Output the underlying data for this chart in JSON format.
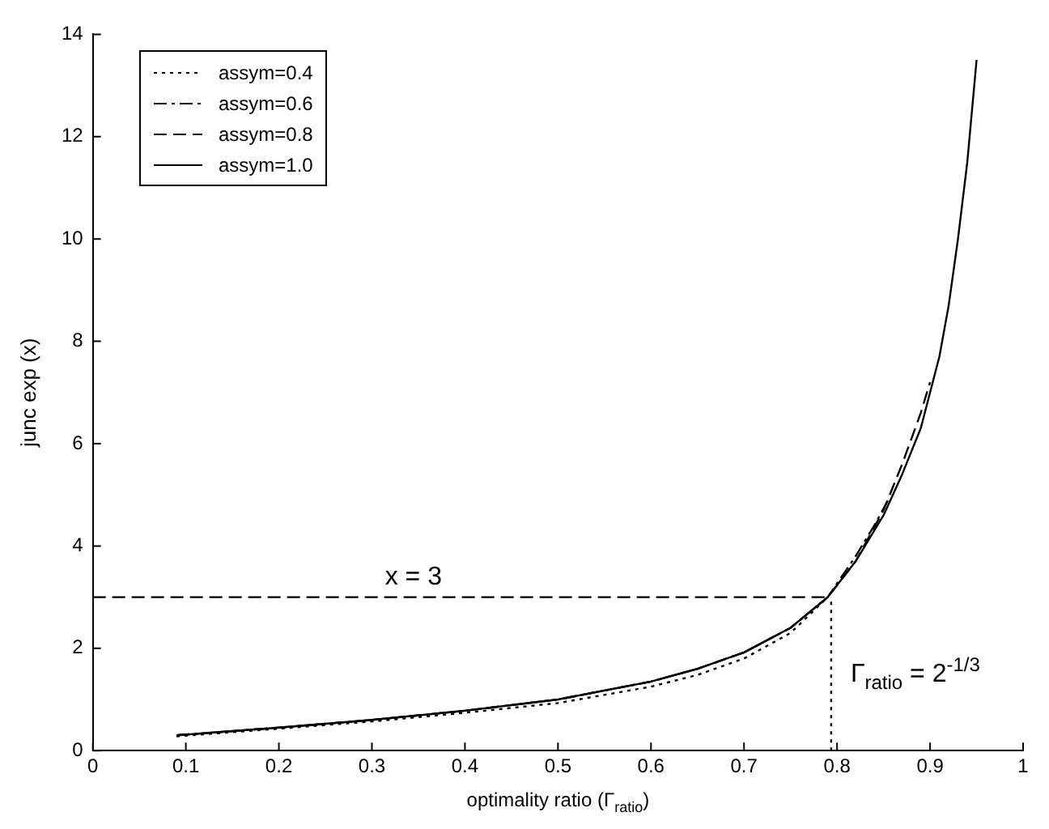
{
  "chart_data": {
    "type": "line",
    "xlabel": "optimality ratio (Γ$_{ratio}$)",
    "ylabel": "junc exp (x)",
    "xlim": [
      0,
      1
    ],
    "xticks": [
      0,
      0.1,
      0.2,
      0.3,
      0.4,
      0.5,
      0.6,
      0.7,
      0.8,
      0.9,
      1
    ],
    "ylim": [
      0,
      14
    ],
    "yticks": [
      0,
      2,
      4,
      6,
      8,
      10,
      12,
      14
    ],
    "grid": false,
    "legend": "top left",
    "marker": "none",
    "series": [
      {
        "name": "assym=0.4",
        "color": "#000000",
        "line_style": "dotted",
        "x": [
          0.09,
          0.2,
          0.3,
          0.4,
          0.5,
          0.6,
          0.65,
          0.7,
          0.75,
          0.79
        ],
        "values": [
          0.28,
          0.43,
          0.57,
          0.74,
          0.93,
          1.25,
          1.48,
          1.8,
          2.3,
          3.0
        ]
      },
      {
        "name": "assym=0.6",
        "color": "#000000",
        "line_style": "dashdot",
        "x": [
          0.09,
          0.2,
          0.3,
          0.4,
          0.5,
          0.6,
          0.65,
          0.7,
          0.75,
          0.79,
          0.82,
          0.84,
          0.855
        ],
        "values": [
          0.3,
          0.45,
          0.6,
          0.78,
          1.0,
          1.35,
          1.6,
          1.92,
          2.4,
          3.0,
          3.8,
          4.4,
          4.9
        ]
      },
      {
        "name": "assym=0.8",
        "color": "#000000",
        "line_style": "dashed",
        "x": [
          0.09,
          0.2,
          0.3,
          0.4,
          0.5,
          0.6,
          0.65,
          0.7,
          0.75,
          0.79,
          0.82,
          0.85,
          0.87,
          0.89,
          0.9
        ],
        "values": [
          0.3,
          0.45,
          0.6,
          0.78,
          1.0,
          1.35,
          1.6,
          1.92,
          2.4,
          3.0,
          3.7,
          4.7,
          5.6,
          6.6,
          7.2
        ]
      },
      {
        "name": "assym=1.0",
        "color": "#000000",
        "line_style": "solid",
        "x": [
          0.09,
          0.2,
          0.3,
          0.4,
          0.5,
          0.6,
          0.65,
          0.7,
          0.75,
          0.79,
          0.82,
          0.85,
          0.87,
          0.89,
          0.9,
          0.91,
          0.92,
          0.93,
          0.94,
          0.95
        ],
        "values": [
          0.3,
          0.45,
          0.6,
          0.78,
          1.0,
          1.35,
          1.6,
          1.92,
          2.4,
          3.0,
          3.7,
          4.6,
          5.4,
          6.3,
          7.0,
          7.7,
          8.7,
          10.0,
          11.5,
          13.5
        ]
      }
    ],
    "ref_lines": [
      {
        "axis": "y",
        "value": 3,
        "line_style": "dashed",
        "color": "#000000"
      },
      {
        "axis": "x",
        "value": 0.7937,
        "line_style": "dotted",
        "color": "#000000"
      }
    ],
    "annotations": [
      "x = 3",
      "Γ$_{ratio}$ = 2$^{-1/3}$"
    ]
  }
}
